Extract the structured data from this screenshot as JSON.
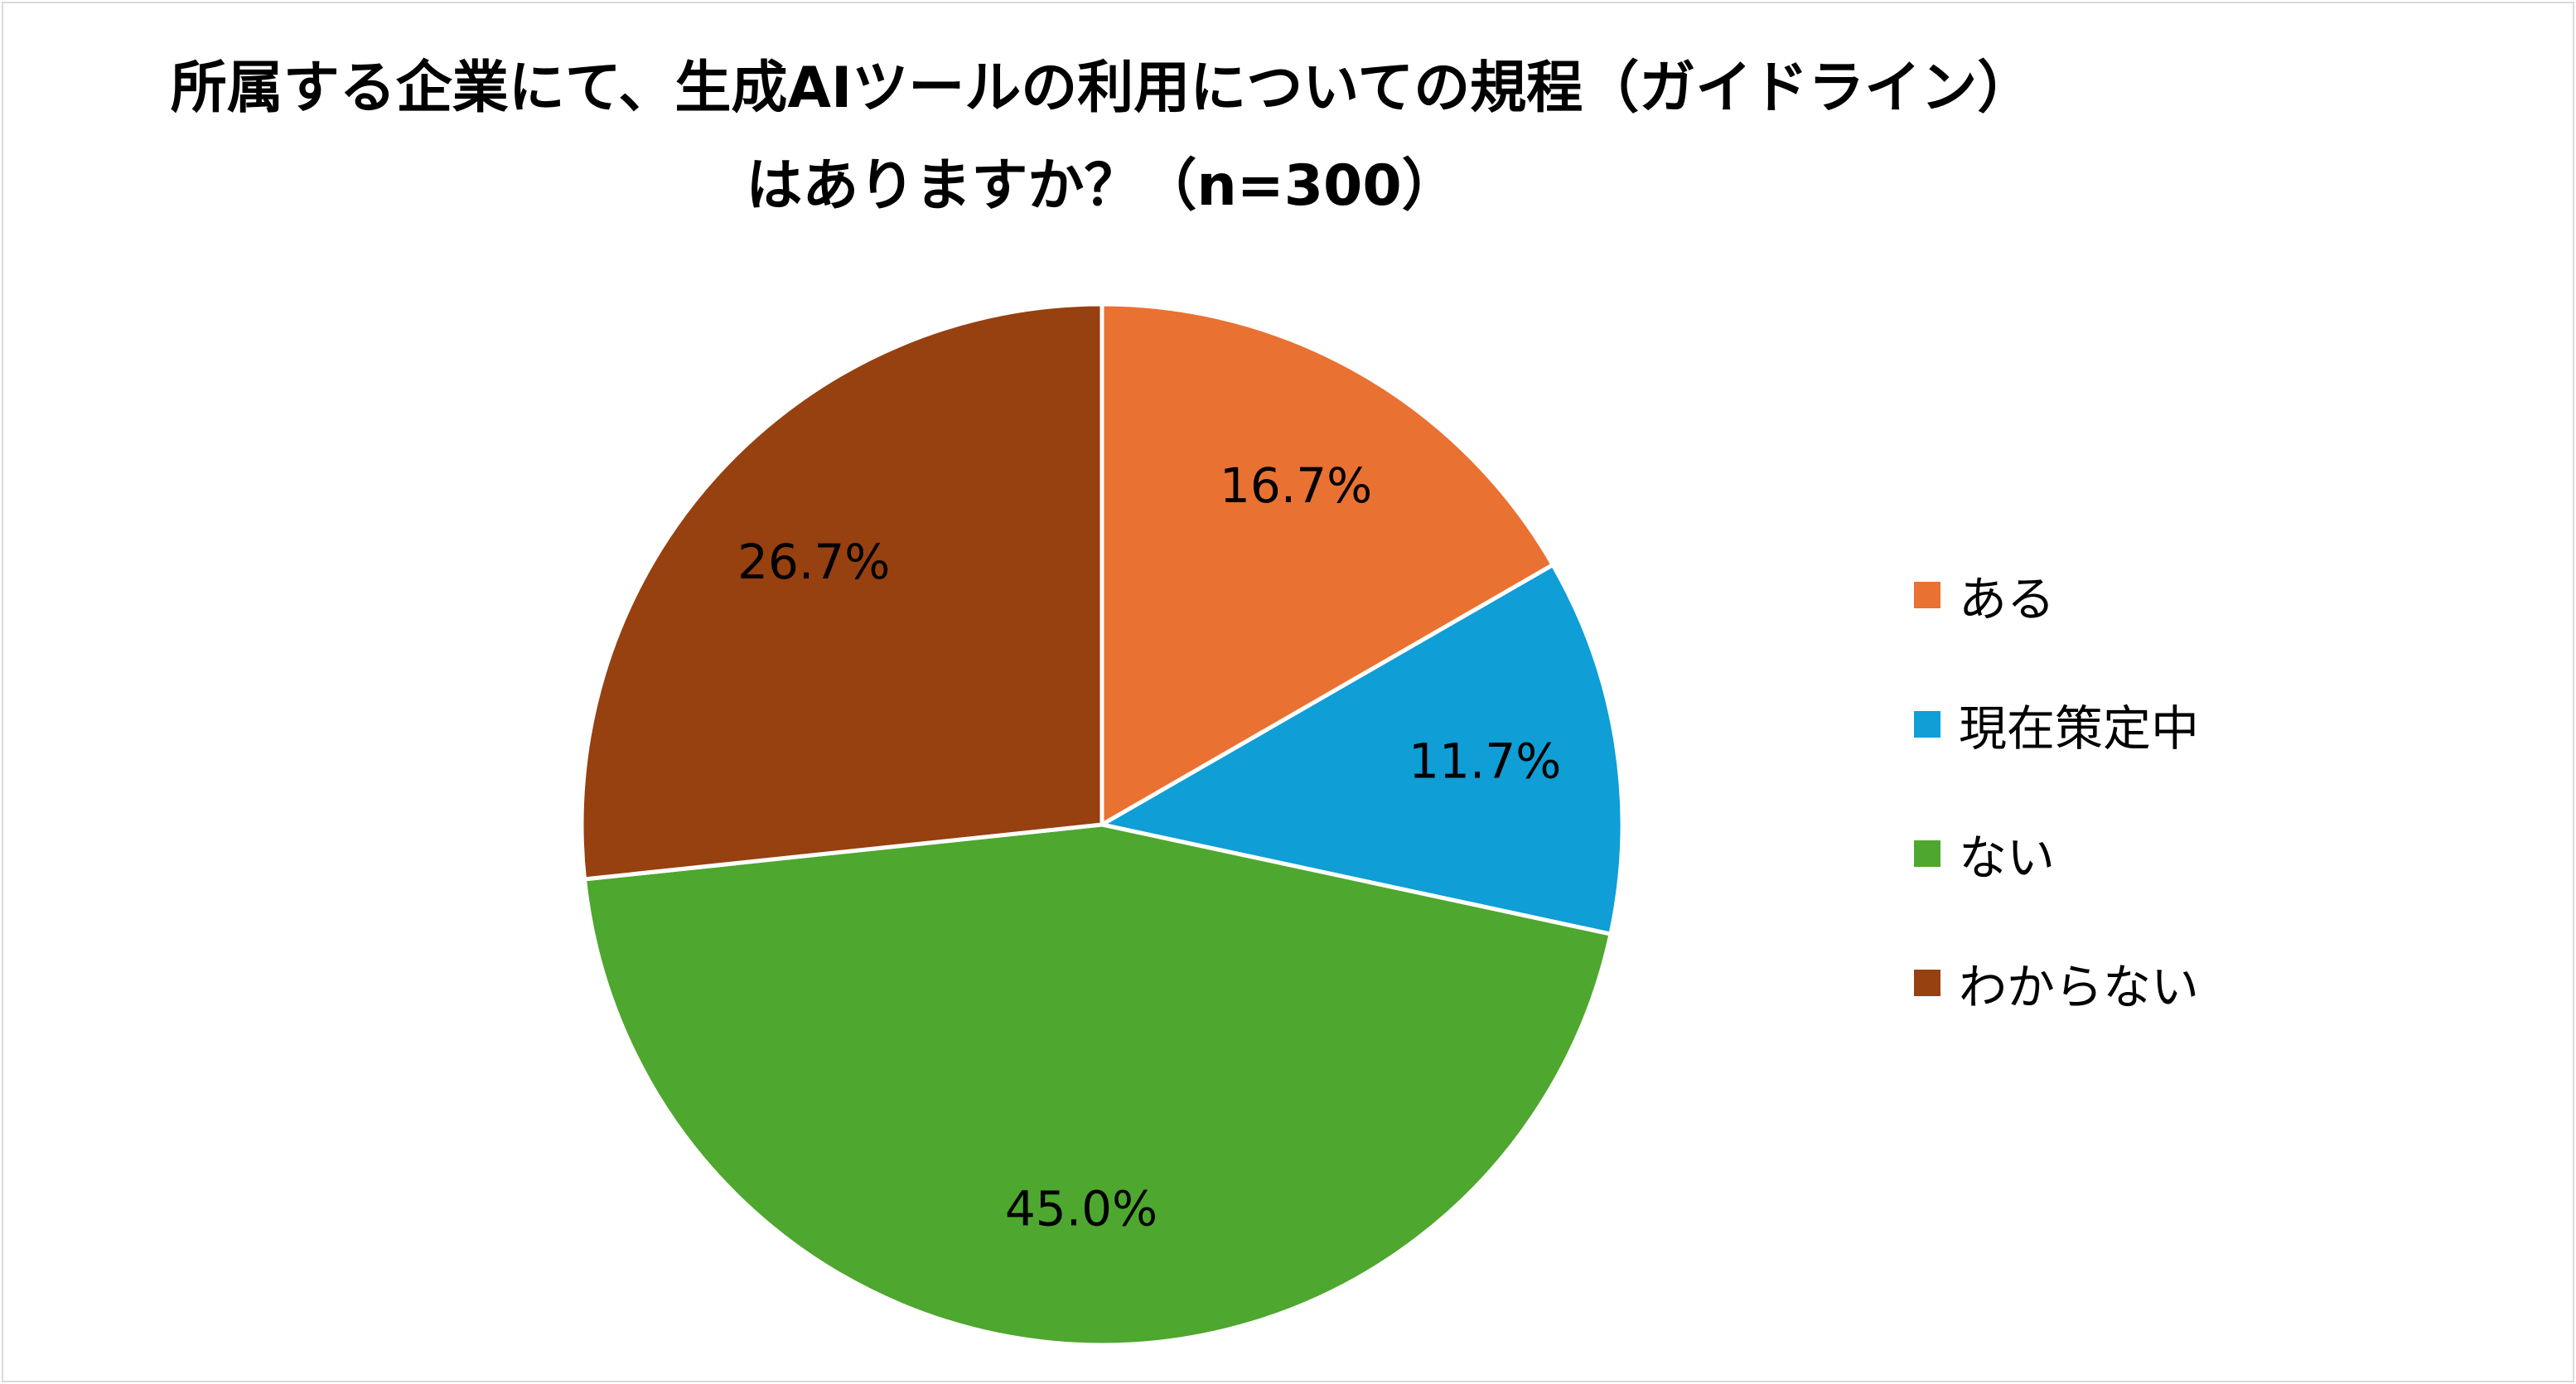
{
  "chart_data": {
    "type": "pie",
    "title": "所属する企業にて、生成AIツールの利用についての規程（ガイドライン）",
    "subtitle": "はありますか？（n=300）",
    "categories": [
      "ある",
      "現在策定中",
      "ない",
      "わからない"
    ],
    "values": [
      16.7,
      11.7,
      45.0,
      26.7
    ],
    "data_labels": [
      "16.7%",
      "11.7%",
      "45.0%",
      "26.7%"
    ],
    "colors": [
      "#E97132",
      "#0F9ED5",
      "#4EA72E",
      "#974010"
    ],
    "start_angle": "12 o'clock",
    "direction": "clockwise",
    "legend_position": "right"
  }
}
